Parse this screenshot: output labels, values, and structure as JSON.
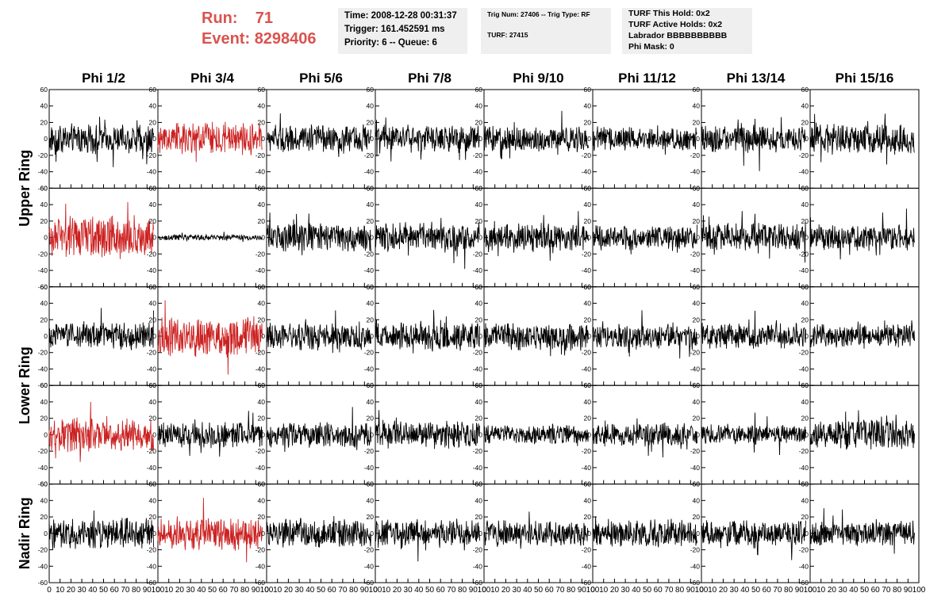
{
  "header": {
    "run_label": "Run:",
    "run_value": "71",
    "event_label": "Event:",
    "event_value": "8298406",
    "time_line": "Time: 2008-12-28 00:31:37",
    "trigger_line": "Trigger: 161.452591 ms",
    "priority_line": "Priority: 6 -- Queue: 6",
    "trig_line": "Trig Num: 27406 -- Trig Type: RF",
    "turf_line": "TURF: 27415",
    "turf_hold_line": "TURF This Hold: 0x2",
    "turf_active_line": "TURF Active Holds: 0x2",
    "labrador_line": "Labrador BBBBBBBBBB",
    "phi_mask_line": "Phi Mask: 0"
  },
  "chart_data": {
    "type": "line",
    "columns": [
      "Phi 1/2",
      "Phi 3/4",
      "Phi 5/6",
      "Phi 7/8",
      "Phi 9/10",
      "Phi 11/12",
      "Phi 13/14",
      "Phi 15/16"
    ],
    "rows": [
      "Upper Ring",
      "Lower Ring",
      "Nadir Ring"
    ],
    "ylim": [
      -60,
      60
    ],
    "xlim": [
      0,
      100
    ],
    "y_ticks": [
      -60,
      -40,
      -20,
      0,
      20,
      40,
      60
    ],
    "x_tick_labels": [
      "0",
      "10",
      "20",
      "30",
      "40",
      "50",
      "60",
      "70",
      "80",
      "90",
      "100"
    ],
    "x_ticks": [
      0,
      10,
      20,
      30,
      40,
      50,
      60,
      70,
      80,
      90,
      100
    ],
    "colors": {
      "normal": "#000000",
      "triggered": "#cc2222"
    },
    "panels": [
      {
        "row": 0,
        "col": 0,
        "color": "normal",
        "amplitude": 15
      },
      {
        "row": 0,
        "col": 1,
        "color": "triggered",
        "amplitude": 17
      },
      {
        "row": 0,
        "col": 2,
        "color": "normal",
        "amplitude": 14
      },
      {
        "row": 0,
        "col": 3,
        "color": "normal",
        "amplitude": 14
      },
      {
        "row": 0,
        "col": 4,
        "color": "normal",
        "amplitude": 13
      },
      {
        "row": 0,
        "col": 5,
        "color": "normal",
        "amplitude": 12
      },
      {
        "row": 0,
        "col": 6,
        "color": "normal",
        "amplitude": 14
      },
      {
        "row": 0,
        "col": 7,
        "color": "normal",
        "amplitude": 16
      },
      {
        "row": 1,
        "col": 0,
        "color": "triggered",
        "amplitude": 22
      },
      {
        "row": 1,
        "col": 1,
        "color": "normal",
        "amplitude": 3
      },
      {
        "row": 1,
        "col": 2,
        "color": "normal",
        "amplitude": 14
      },
      {
        "row": 1,
        "col": 3,
        "color": "normal",
        "amplitude": 15
      },
      {
        "row": 1,
        "col": 4,
        "color": "normal",
        "amplitude": 15
      },
      {
        "row": 1,
        "col": 5,
        "color": "normal",
        "amplitude": 13
      },
      {
        "row": 1,
        "col": 6,
        "color": "normal",
        "amplitude": 14
      },
      {
        "row": 1,
        "col": 7,
        "color": "normal",
        "amplitude": 13
      },
      {
        "row": 2,
        "col": 0,
        "color": "normal",
        "amplitude": 14
      },
      {
        "row": 2,
        "col": 1,
        "color": "triggered",
        "amplitude": 20
      },
      {
        "row": 2,
        "col": 2,
        "color": "normal",
        "amplitude": 14
      },
      {
        "row": 2,
        "col": 3,
        "color": "normal",
        "amplitude": 15
      },
      {
        "row": 2,
        "col": 4,
        "color": "normal",
        "amplitude": 14
      },
      {
        "row": 2,
        "col": 5,
        "color": "normal",
        "amplitude": 12
      },
      {
        "row": 2,
        "col": 6,
        "color": "normal",
        "amplitude": 13
      },
      {
        "row": 2,
        "col": 7,
        "color": "normal",
        "amplitude": 12
      },
      {
        "row": 3,
        "col": 0,
        "color": "triggered",
        "amplitude": 17
      },
      {
        "row": 3,
        "col": 1,
        "color": "normal",
        "amplitude": 13
      },
      {
        "row": 3,
        "col": 2,
        "color": "normal",
        "amplitude": 13
      },
      {
        "row": 3,
        "col": 3,
        "color": "normal",
        "amplitude": 14
      },
      {
        "row": 3,
        "col": 4,
        "color": "normal",
        "amplitude": 10
      },
      {
        "row": 3,
        "col": 5,
        "color": "normal",
        "amplitude": 12
      },
      {
        "row": 3,
        "col": 6,
        "color": "normal",
        "amplitude": 10
      },
      {
        "row": 3,
        "col": 7,
        "color": "normal",
        "amplitude": 16
      },
      {
        "row": 4,
        "col": 0,
        "color": "normal",
        "amplitude": 16
      },
      {
        "row": 4,
        "col": 1,
        "color": "triggered",
        "amplitude": 17
      },
      {
        "row": 4,
        "col": 2,
        "color": "normal",
        "amplitude": 15
      },
      {
        "row": 4,
        "col": 3,
        "color": "normal",
        "amplitude": 14
      },
      {
        "row": 4,
        "col": 4,
        "color": "normal",
        "amplitude": 13
      },
      {
        "row": 4,
        "col": 5,
        "color": "normal",
        "amplitude": 14
      },
      {
        "row": 4,
        "col": 6,
        "color": "normal",
        "amplitude": 13
      },
      {
        "row": 4,
        "col": 7,
        "color": "normal",
        "amplitude": 13
      }
    ]
  }
}
